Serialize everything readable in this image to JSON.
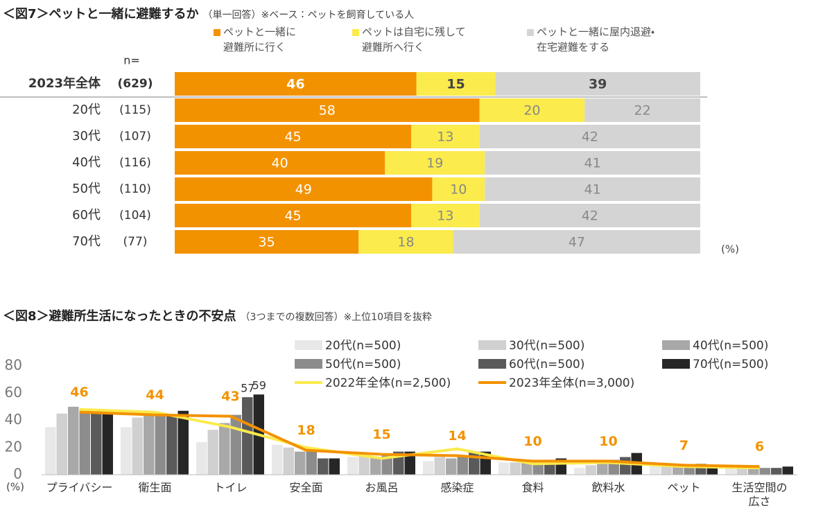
{
  "chart_data": [
    {
      "type": "stacked_bar",
      "title": "＜図7＞ペットと一緒に避難するか",
      "subtitle": "（単一回答）※ベース：ペットを飼育している人",
      "n_header": "n=",
      "unit": "(%)",
      "categories": [
        "2023年全体",
        "20代",
        "30代",
        "40代",
        "50代",
        "60代",
        "70代"
      ],
      "n_labels": [
        "(629)",
        "(115)",
        "(107)",
        "(116)",
        "(110)",
        "(104)",
        "(77)"
      ],
      "xlim": [
        0,
        100
      ],
      "series": [
        {
          "name": "ペットと一緒に\n避難所に行く",
          "color": "#f39200",
          "values": [
            46,
            58,
            45,
            40,
            49,
            45,
            35
          ]
        },
        {
          "name": "ペットは自宅に残して\n避難所へ行く",
          "color": "#fbeb4c",
          "values": [
            15,
            20,
            13,
            19,
            10,
            13,
            18
          ]
        },
        {
          "name": "ペットと一緒に屋内退避・\n在宅避難をする",
          "color": "#d4d4d4",
          "values": [
            39,
            22,
            42,
            41,
            41,
            42,
            47
          ]
        }
      ]
    },
    {
      "type": "bar_line",
      "title": "＜図8＞避難所生活になったときの不安点",
      "subtitle": "（3つまでの複数回答）※上位10項目を抜粋",
      "ylabel": "(%)",
      "ylim": [
        0,
        80
      ],
      "yticks": [
        0,
        20,
        40,
        60,
        80
      ],
      "grid": false,
      "categories": [
        "プライバシー",
        "衛生面",
        "トイレ",
        "安全面",
        "お風呂",
        "感染症",
        "食料",
        "飲料水",
        "ペット",
        "生活空間の\n広さ"
      ],
      "series": [
        {
          "name": "20代(n=500)",
          "kind": "bar",
          "color": "#e8e8e8",
          "values": [
            35,
            35,
            24,
            22,
            13,
            10,
            9,
            5,
            7,
            5
          ]
        },
        {
          "name": "30代(n=500)",
          "kind": "bar",
          "color": "#d0d0d0",
          "values": [
            45,
            42,
            33,
            20,
            14,
            13,
            9,
            7,
            6,
            5
          ]
        },
        {
          "name": "40代(n=500)",
          "kind": "bar",
          "color": "#a8a8a8",
          "values": [
            50,
            44,
            38,
            17,
            13,
            12,
            9,
            9,
            7,
            5
          ]
        },
        {
          "name": "50代(n=500)",
          "kind": "bar",
          "color": "#8c8c8c",
          "values": [
            48,
            44,
            44,
            17,
            15,
            14,
            10,
            11,
            7,
            5
          ]
        },
        {
          "name": "60代(n=500)",
          "kind": "bar",
          "color": "#5a5a5a",
          "values": [
            48,
            44,
            57,
            12,
            17,
            17,
            11,
            13,
            8,
            5
          ],
          "value_labels": [
            null,
            null,
            "57",
            null,
            null,
            null,
            null,
            null,
            null,
            null
          ]
        },
        {
          "name": "70代(n=500)",
          "kind": "bar",
          "color": "#262626",
          "values": [
            46,
            47,
            59,
            12,
            17,
            17,
            12,
            16,
            7,
            6
          ],
          "value_labels": [
            null,
            null,
            "59",
            null,
            null,
            null,
            null,
            null,
            null,
            null
          ]
        },
        {
          "name": "2022年全体(n=2,500)",
          "kind": "line",
          "color": "#fbeb4c",
          "values": [
            48,
            46,
            35,
            20,
            12,
            19,
            8,
            9,
            6,
            5
          ]
        },
        {
          "name": "2023年全体(n=3,000)",
          "kind": "line",
          "color": "#f39200",
          "values": [
            46,
            44,
            43,
            18,
            15,
            14,
            10,
            10,
            7,
            6
          ],
          "data_labels": true
        }
      ]
    }
  ]
}
